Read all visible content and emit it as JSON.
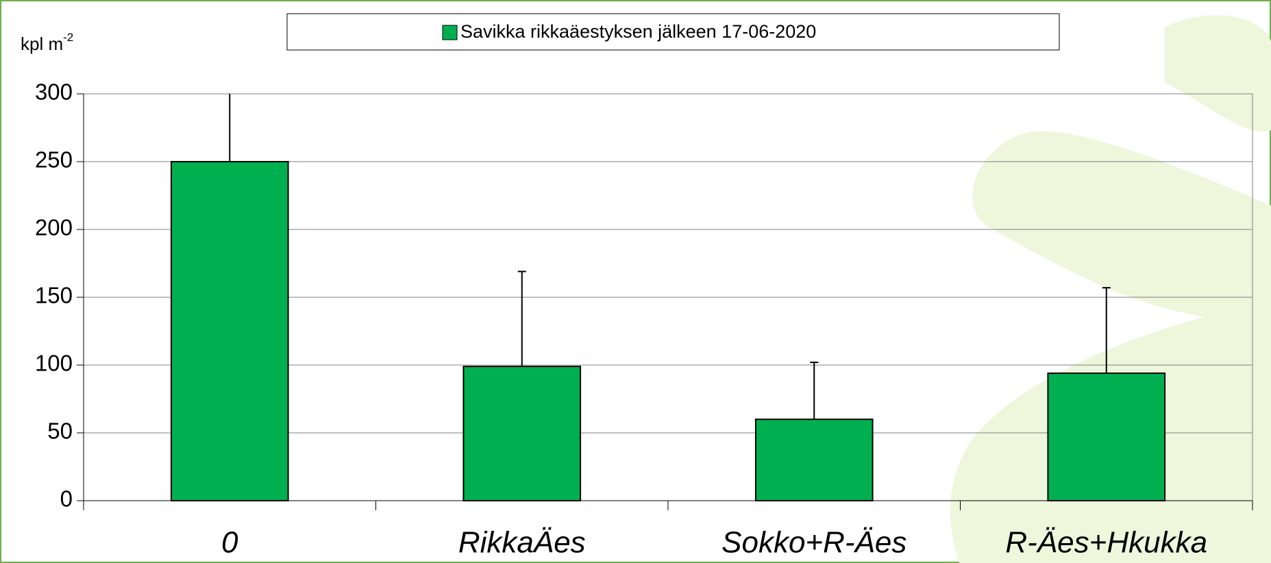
{
  "chart_data": {
    "type": "bar",
    "y_label": {
      "text": "kpl m",
      "superscript": "-2"
    },
    "categories": [
      "0",
      "RikkaÄes",
      "Sokko+R-Äes",
      "R-Äes+Hkukka"
    ],
    "series": [
      {
        "name": "Savikka rikkaäestyksen jälkeen 17-06-2020",
        "color": "#00b050",
        "values": [
          250,
          99,
          60,
          94
        ],
        "errors": [
          55,
          70,
          42,
          63
        ]
      }
    ],
    "ylim": [
      0,
      300
    ],
    "yticks": [
      0,
      50,
      100,
      150,
      200,
      250,
      300
    ],
    "grid": true,
    "legend": "top"
  }
}
